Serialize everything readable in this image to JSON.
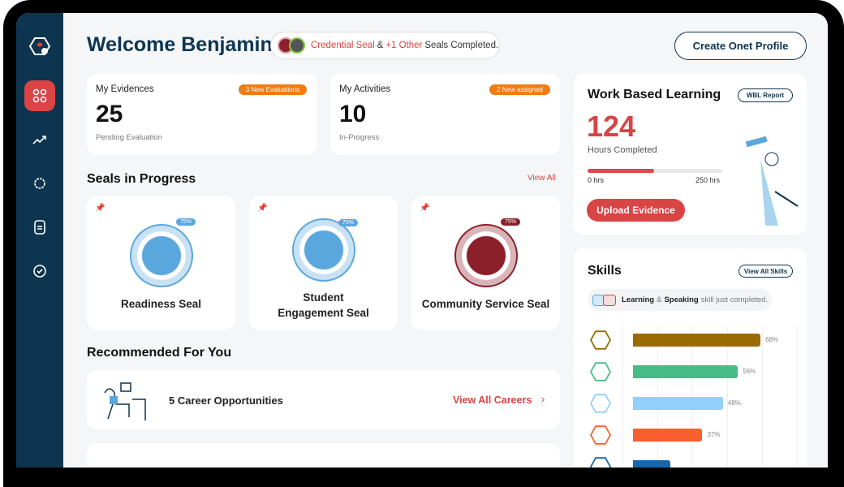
{
  "header": {
    "welcome": "Welcome Benjamin!",
    "seal_notice": {
      "seal": "Credential Seal",
      "amp": "&",
      "other": "+1 Other",
      "rest": "Seals Completed."
    },
    "create_profile": "Create Onet Profile"
  },
  "sidebar": {
    "items": [
      {
        "icon": "logo-hex-icon"
      },
      {
        "icon": "dashboard-grid-icon",
        "active": true
      },
      {
        "icon": "trend-up-icon"
      },
      {
        "icon": "badge-icon"
      },
      {
        "icon": "document-icon"
      },
      {
        "icon": "clock-check-icon"
      }
    ]
  },
  "evidences": {
    "title": "My Evidences",
    "badge": "3 New Evaluations",
    "count": "25",
    "sub": "Pending Evaluation"
  },
  "activities": {
    "title": "My Activities",
    "badge": "2 New assigned",
    "count": "10",
    "sub": "In-Progress"
  },
  "seals": {
    "title": "Seals in Progress",
    "view_all": "View All",
    "items": [
      {
        "name": "Readiness Seal",
        "progress": "75%",
        "color": "#5aa7dd"
      },
      {
        "name": "Student Engagement Seal",
        "progress": "75%",
        "color": "#5aa7dd"
      },
      {
        "name": "Community Service Seal",
        "progress": "75%",
        "color": "#8b1f2a"
      }
    ]
  },
  "recommended": {
    "title": "Recommended For You",
    "career": "5 Career Opportunities",
    "view_all": "View All Careers"
  },
  "wbl": {
    "title": "Work Based Learning",
    "report": "WBL Report",
    "hours": "124",
    "hours_label": "Hours Completed",
    "min": "0 hrs",
    "max": "250 hrs",
    "progress": 0.496,
    "upload": "Upload Evidence"
  },
  "skills": {
    "title": "Skills",
    "view_all": "View All Skills",
    "notice": {
      "a": "Learning",
      "amp": "&",
      "b": "Speaking",
      "rest": "skill just completed."
    },
    "chart_data": {
      "type": "bar",
      "orientation": "horizontal",
      "values": [
        68,
        56,
        48,
        37,
        20
      ],
      "labels": [
        "68%",
        "56%",
        "48%",
        "37%",
        ""
      ],
      "colors": [
        "#9a6b00",
        "#47bc86",
        "#93cffb",
        "#f95f2e",
        "#1467b0"
      ]
    }
  },
  "colors": {
    "sidebar": "#0d3550",
    "accent": "#d94444",
    "badge": "#f07c12"
  }
}
